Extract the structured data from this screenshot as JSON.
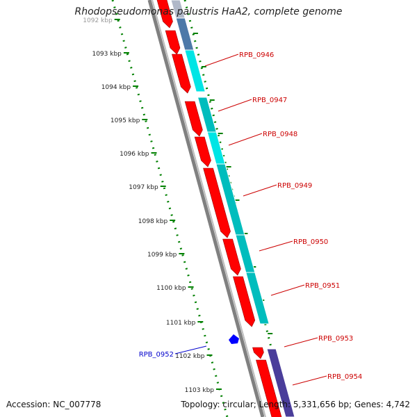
{
  "title": "Rhodopseudomonas palustris HaA2, complete genome",
  "accession": "Accession: NC_007778",
  "summary": "Topology: circular; Length: 5,331,656 bp; Genes: 4,742",
  "ticks": [
    "1092 kbp",
    "1093 kbp",
    "1094 kbp",
    "1095 kbp",
    "1096 kbp",
    "1097 kbp",
    "1098 kbp",
    "1099 kbp",
    "1100 kbp",
    "1101 kbp",
    "1102 kbp",
    "1103 kbp"
  ],
  "genes": [
    {
      "label": "RPB_0946"
    },
    {
      "label": "RPB_0947"
    },
    {
      "label": "RPB_0948"
    },
    {
      "label": "RPB_0949"
    },
    {
      "label": "RPB_0950"
    },
    {
      "label": "RPB_0951"
    },
    {
      "label": "RPB_0953"
    },
    {
      "label": "RPB_0954"
    },
    {
      "label": "RPB_0952"
    }
  ],
  "colors": {
    "cds": "#ff0000",
    "orf_cyan": "#00e5e5",
    "orf_teal": "#00bdbd",
    "orf_purple": "#4a3d9a",
    "orf_steel": "#4d79a8",
    "backbone": "#808080",
    "scale": "#008000",
    "label_red": "#cc0000",
    "label_blue": "#0000cc"
  }
}
